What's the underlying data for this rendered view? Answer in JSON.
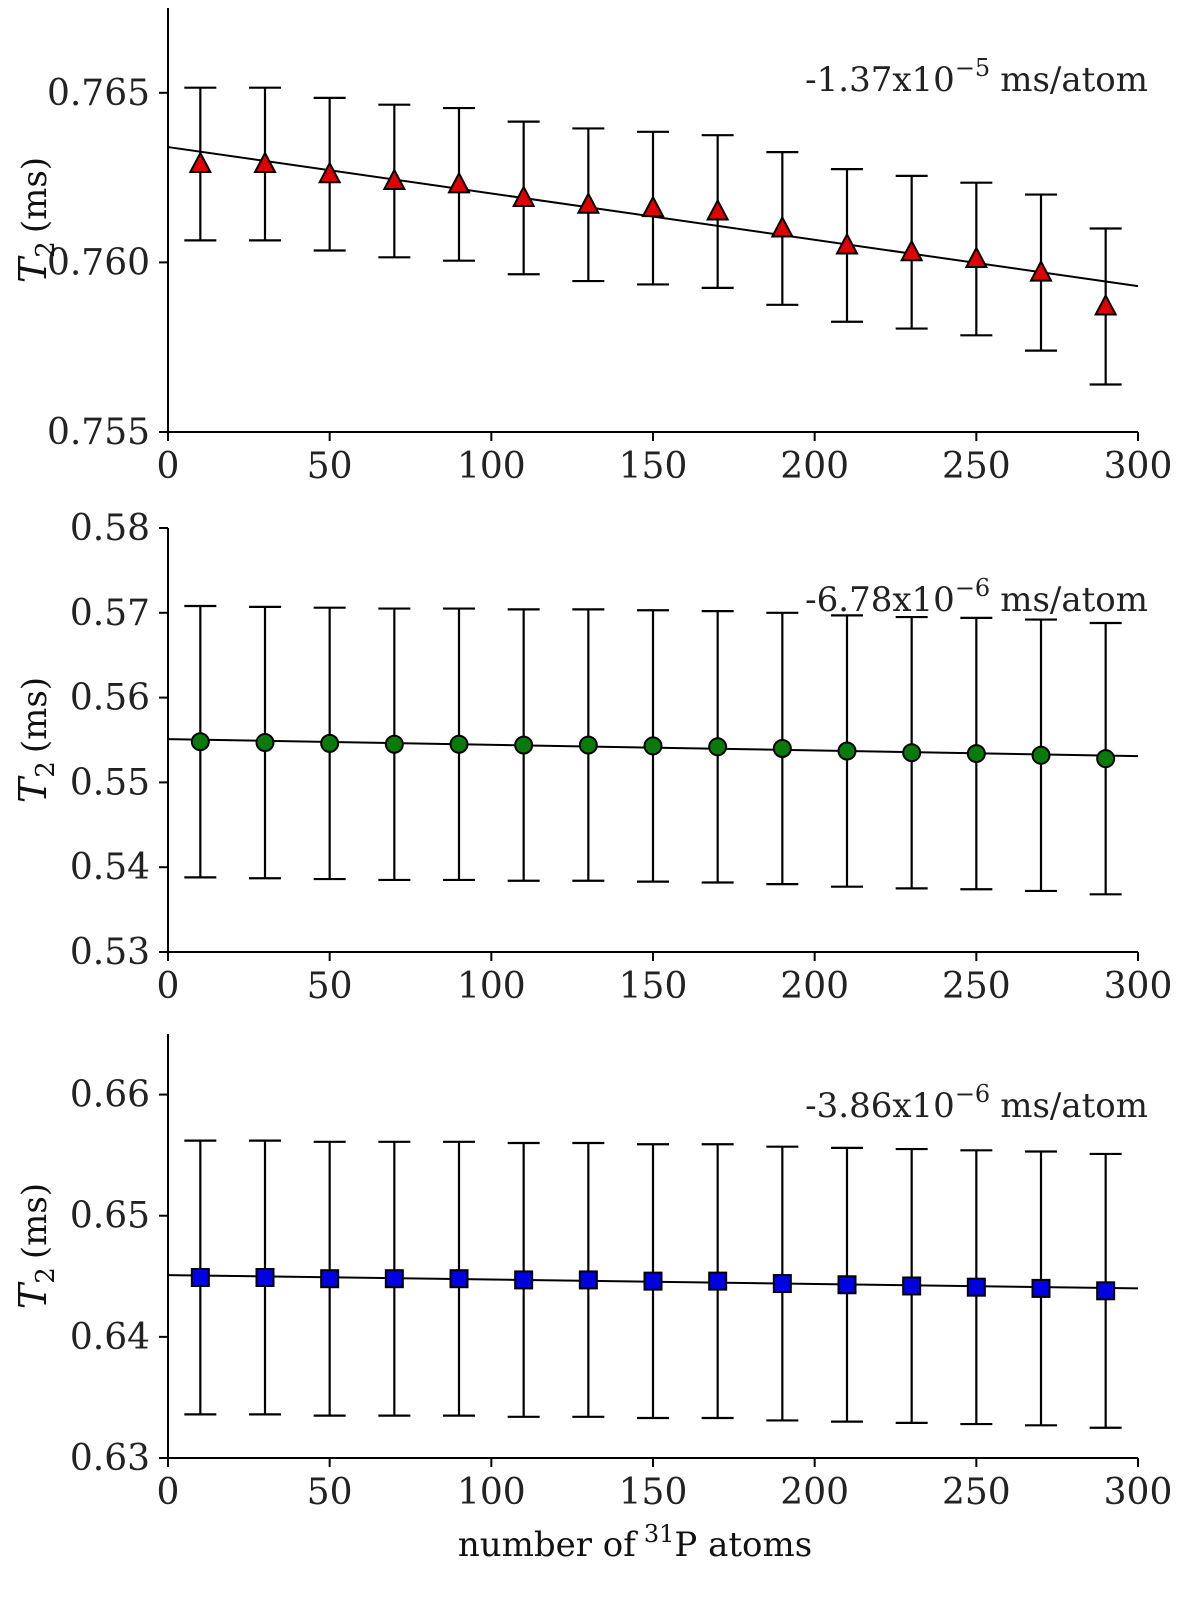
{
  "chart_data": [
    {
      "type": "scatter",
      "title": "",
      "xlabel": "",
      "ylabel_main": "T",
      "ylabel_sub": "2",
      "ylabel_rest": "(ms)",
      "annotation": {
        "prefix": "-1.37x10",
        "exponent": "−5",
        "suffix": "ms/atom"
      },
      "xlim": [
        0,
        300
      ],
      "ylim": [
        0.755,
        0.7675
      ],
      "xticks": [
        0,
        50,
        100,
        150,
        200,
        250,
        300
      ],
      "xtick_labels": [
        "0",
        "50",
        "100",
        "150",
        "200",
        "250",
        "300"
      ],
      "yticks": [
        0.755,
        0.76,
        0.765
      ],
      "ytick_labels": [
        "0.755",
        "0.760",
        "0.765"
      ],
      "grid": false,
      "marker": "triangle",
      "marker_color": "#e00000",
      "x": [
        10,
        30,
        50,
        70,
        90,
        110,
        130,
        150,
        170,
        190,
        210,
        230,
        250,
        270,
        290
      ],
      "y": [
        0.7629,
        0.7629,
        0.7626,
        0.7624,
        0.7623,
        0.7619,
        0.7617,
        0.7616,
        0.7615,
        0.761,
        0.7605,
        0.7603,
        0.7601,
        0.7597,
        0.7587
      ],
      "yerr": [
        0.00225,
        0.00225,
        0.00225,
        0.00225,
        0.00225,
        0.00225,
        0.00225,
        0.00225,
        0.00225,
        0.00225,
        0.00225,
        0.00225,
        0.00225,
        0.0023,
        0.0023
      ],
      "fit": {
        "x": [
          0,
          300
        ],
        "y": [
          0.7634,
          0.7593
        ]
      }
    },
    {
      "type": "scatter",
      "title": "",
      "xlabel": "",
      "ylabel_main": "T",
      "ylabel_sub": "2",
      "ylabel_rest": "(ms)",
      "annotation": {
        "prefix": "-6.78x10",
        "exponent": "−6",
        "suffix": "ms/atom"
      },
      "xlim": [
        0,
        300
      ],
      "ylim": [
        0.53,
        0.58
      ],
      "xticks": [
        0,
        50,
        100,
        150,
        200,
        250,
        300
      ],
      "xtick_labels": [
        "0",
        "50",
        "100",
        "150",
        "200",
        "250",
        "300"
      ],
      "yticks": [
        0.53,
        0.54,
        0.55,
        0.56,
        0.57,
        0.58
      ],
      "ytick_labels": [
        "0.53",
        "0.54",
        "0.55",
        "0.56",
        "0.57",
        "0.58"
      ],
      "grid": false,
      "marker": "circle",
      "marker_color": "#0a7a0a",
      "x": [
        10,
        30,
        50,
        70,
        90,
        110,
        130,
        150,
        170,
        190,
        210,
        230,
        250,
        270,
        290
      ],
      "y": [
        0.5548,
        0.5547,
        0.5546,
        0.5545,
        0.5545,
        0.5544,
        0.5544,
        0.5543,
        0.5542,
        0.554,
        0.5537,
        0.5535,
        0.5534,
        0.5532,
        0.5528
      ],
      "yerr": [
        0.016,
        0.016,
        0.016,
        0.016,
        0.016,
        0.016,
        0.016,
        0.016,
        0.016,
        0.016,
        0.016,
        0.016,
        0.016,
        0.016,
        0.016
      ],
      "fit": {
        "x": [
          0,
          300
        ],
        "y": [
          0.5551,
          0.5531
        ]
      }
    },
    {
      "type": "scatter",
      "title": "",
      "xlabel_pre": "number of",
      "xlabel_sup": "31",
      "xlabel_post": "P atoms",
      "ylabel_main": "T",
      "ylabel_sub": "2",
      "ylabel_rest": "(ms)",
      "annotation": {
        "prefix": "-3.86x10",
        "exponent": "−6",
        "suffix": "ms/atom"
      },
      "xlim": [
        0,
        300
      ],
      "ylim": [
        0.63,
        0.665
      ],
      "xticks": [
        0,
        50,
        100,
        150,
        200,
        250,
        300
      ],
      "xtick_labels": [
        "0",
        "50",
        "100",
        "150",
        "200",
        "250",
        "300"
      ],
      "yticks": [
        0.63,
        0.64,
        0.65,
        0.66
      ],
      "ytick_labels": [
        "0.63",
        "0.64",
        "0.65",
        "0.66"
      ],
      "grid": false,
      "marker": "square",
      "marker_color": "#0000e0",
      "x": [
        10,
        30,
        50,
        70,
        90,
        110,
        130,
        150,
        170,
        190,
        210,
        230,
        250,
        270,
        290
      ],
      "y": [
        0.6449,
        0.6449,
        0.6448,
        0.6448,
        0.6448,
        0.6447,
        0.6447,
        0.6446,
        0.6446,
        0.6444,
        0.6443,
        0.6442,
        0.6441,
        0.644,
        0.6438
      ],
      "yerr": [
        0.0113,
        0.0113,
        0.0113,
        0.0113,
        0.0113,
        0.0113,
        0.0113,
        0.0113,
        0.0113,
        0.0113,
        0.0113,
        0.0113,
        0.0113,
        0.0113,
        0.0113
      ],
      "fit": {
        "x": [
          0,
          300
        ],
        "y": [
          0.6451,
          0.644
        ]
      }
    }
  ]
}
